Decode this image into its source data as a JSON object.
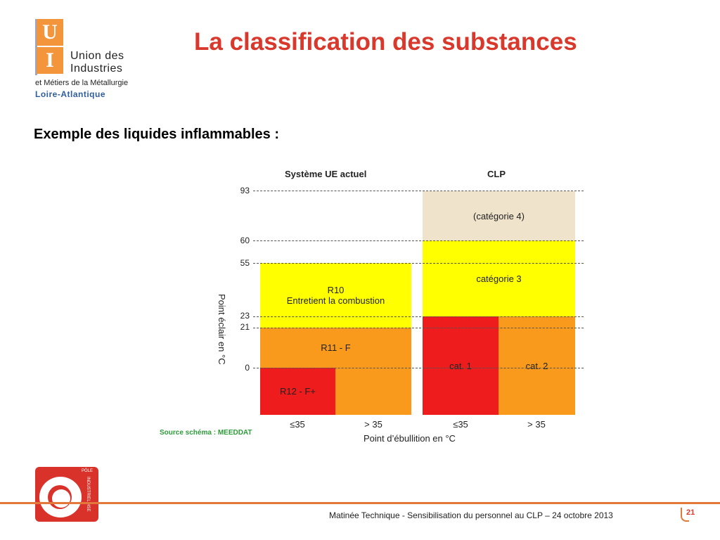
{
  "logo": {
    "u": "U",
    "i": "I",
    "line1": "Union des",
    "line2": "Industries",
    "line3": "et Métiers de la Métallurgie",
    "line4": "Loire-Atlantique"
  },
  "title": "La classification des substances",
  "subtitle": "Exemple des liquides inflammables :",
  "diagram": {
    "headers": {
      "left": "Système UE actuel",
      "right": "CLP"
    },
    "ticks": [
      "93",
      "60",
      "55",
      "23",
      "21",
      "0"
    ],
    "cells": {
      "r10_line1": "R10",
      "r10_line2": "Entretient la combustion",
      "r11": "R11 - F",
      "r12": "R12 - F+",
      "cat4": "(catégorie 4)",
      "cat3": "catégorie 3",
      "cat1": "cat. 1",
      "cat2": "cat. 2"
    },
    "x_labels": [
      "≤35",
      "> 35",
      "≤35",
      "> 35"
    ],
    "y_label": "Point éclair en °C",
    "x_title": "Point d’ébullition en °C",
    "source": "Source schéma : MEEDDAT",
    "colors": {
      "yellow": "#ffff00",
      "orange": "#f99a1c",
      "red": "#ee1c1c",
      "beige": "#efe3cc"
    }
  },
  "pole_logo": {
    "top": "PÔLE",
    "side": "INDUSTRIEL HSE"
  },
  "footer": {
    "text": "Matinée Technique  - Sensibilisation du personnel au CLP – 24 octobre 2013",
    "page": "21"
  }
}
